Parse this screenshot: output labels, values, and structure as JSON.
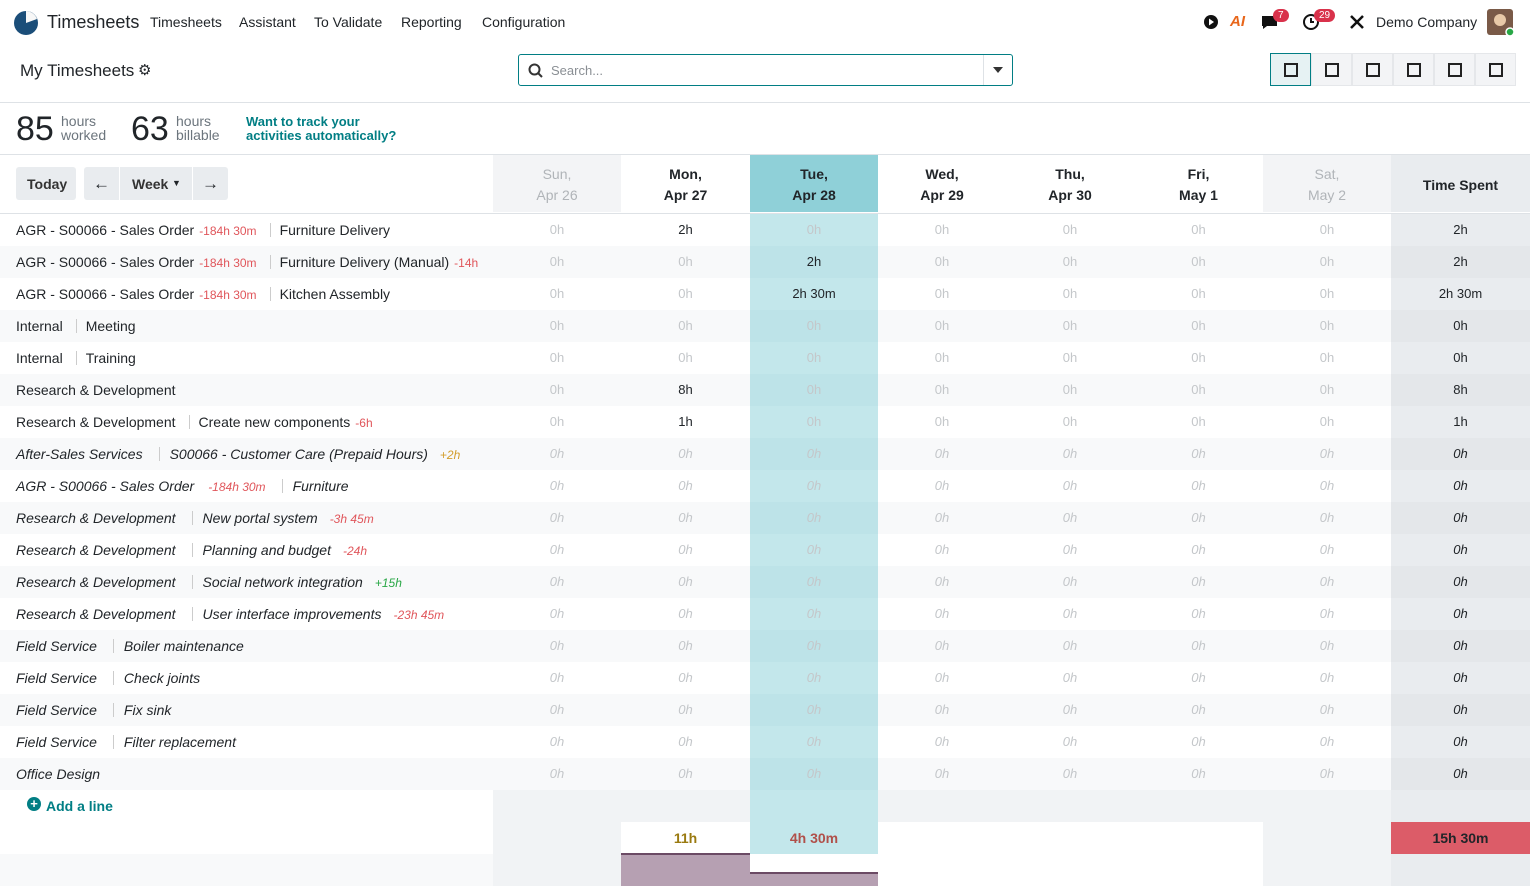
{
  "nav": {
    "app": "Timesheets",
    "menu": [
      "Timesheets",
      "Assistant",
      "To Validate",
      "Reporting",
      "Configuration"
    ],
    "ai": "AI",
    "badges": [
      "7",
      "29"
    ],
    "company": "Demo Company"
  },
  "control": {
    "title": "My Timesheets",
    "search_placeholder": "Search..."
  },
  "stats": [
    {
      "value": "85",
      "line1": "hours",
      "line2": "worked"
    },
    {
      "value": "63",
      "line1": "hours",
      "line2": "billable"
    }
  ],
  "promo": [
    "Want to track your",
    "activities automatically?"
  ],
  "toolbar": {
    "today": "Today",
    "range": "Week"
  },
  "days": [
    {
      "day": "Sun,",
      "date": "Apr 26"
    },
    {
      "day": "Mon,",
      "date": "Apr 27"
    },
    {
      "day": "Tue,",
      "date": "Apr 28"
    },
    {
      "day": "Wed,",
      "date": "Apr 29"
    },
    {
      "day": "Thu,",
      "date": "Apr 30"
    },
    {
      "day": "Fri,",
      "date": "May 1"
    },
    {
      "day": "Sat,",
      "date": "May 2"
    }
  ],
  "total_header": "Time Spent",
  "rows": [
    {
      "project": "AGR - S00066 - Sales Order",
      "project_delta": "-184h 30m",
      "task": "Furniture Delivery",
      "cells": [
        "0h",
        "2h",
        "0h",
        "0h",
        "0h",
        "0h",
        "0h"
      ],
      "total": "2h"
    },
    {
      "project": "AGR - S00066 - Sales Order",
      "project_delta": "-184h 30m",
      "task": "Furniture Delivery (Manual)",
      "task_delta": "-14h",
      "cells": [
        "0h",
        "0h",
        "2h",
        "0h",
        "0h",
        "0h",
        "0h"
      ],
      "total": "2h"
    },
    {
      "project": "AGR - S00066 - Sales Order",
      "project_delta": "-184h 30m",
      "task": "Kitchen Assembly",
      "cells": [
        "0h",
        "0h",
        "2h 30m",
        "0h",
        "0h",
        "0h",
        "0h"
      ],
      "total": "2h 30m"
    },
    {
      "project": "Internal",
      "task": "Meeting",
      "cells": [
        "0h",
        "0h",
        "0h",
        "0h",
        "0h",
        "0h",
        "0h"
      ],
      "total": "0h"
    },
    {
      "project": "Internal",
      "task": "Training",
      "cells": [
        "0h",
        "0h",
        "0h",
        "0h",
        "0h",
        "0h",
        "0h"
      ],
      "total": "0h"
    },
    {
      "project": "Research & Development",
      "cells": [
        "0h",
        "8h",
        "0h",
        "0h",
        "0h",
        "0h",
        "0h"
      ],
      "total": "8h"
    },
    {
      "project": "Research & Development",
      "task": "Create new components",
      "task_delta": "-6h",
      "cells": [
        "0h",
        "1h",
        "0h",
        "0h",
        "0h",
        "0h",
        "0h"
      ],
      "total": "1h"
    },
    {
      "project": "After-Sales Services",
      "task": "S00066 - Customer Care (Prepaid Hours)",
      "task_delta": "+2h",
      "italic": true,
      "cells": [
        "0h",
        "0h",
        "0h",
        "0h",
        "0h",
        "0h",
        "0h"
      ],
      "total": "0h"
    },
    {
      "project": "AGR - S00066 - Sales Order",
      "project_delta": "-184h 30m",
      "task": "Furniture",
      "italic": true,
      "cells": [
        "0h",
        "0h",
        "0h",
        "0h",
        "0h",
        "0h",
        "0h"
      ],
      "total": "0h"
    },
    {
      "project": "Research & Development",
      "task": "New portal system",
      "task_delta": "-3h 45m",
      "italic": true,
      "cells": [
        "0h",
        "0h",
        "0h",
        "0h",
        "0h",
        "0h",
        "0h"
      ],
      "total": "0h"
    },
    {
      "project": "Research & Development",
      "task": "Planning and budget",
      "task_delta": "-24h",
      "italic": true,
      "cells": [
        "0h",
        "0h",
        "0h",
        "0h",
        "0h",
        "0h",
        "0h"
      ],
      "total": "0h"
    },
    {
      "project": "Research & Development",
      "task": "Social network integration",
      "task_delta": "+15h",
      "italic": true,
      "cells": [
        "0h",
        "0h",
        "0h",
        "0h",
        "0h",
        "0h",
        "0h"
      ],
      "total": "0h"
    },
    {
      "project": "Research & Development",
      "task": "User interface improvements",
      "task_delta": "-23h 45m",
      "italic": true,
      "cells": [
        "0h",
        "0h",
        "0h",
        "0h",
        "0h",
        "0h",
        "0h"
      ],
      "total": "0h"
    },
    {
      "project": "Field Service",
      "task": "Boiler maintenance",
      "italic": true,
      "cells": [
        "0h",
        "0h",
        "0h",
        "0h",
        "0h",
        "0h",
        "0h"
      ],
      "total": "0h"
    },
    {
      "project": "Field Service",
      "task": "Check joints",
      "italic": true,
      "cells": [
        "0h",
        "0h",
        "0h",
        "0h",
        "0h",
        "0h",
        "0h"
      ],
      "total": "0h"
    },
    {
      "project": "Field Service",
      "task": "Fix sink",
      "italic": true,
      "cells": [
        "0h",
        "0h",
        "0h",
        "0h",
        "0h",
        "0h",
        "0h"
      ],
      "total": "0h"
    },
    {
      "project": "Field Service",
      "task": "Filter replacement",
      "italic": true,
      "cells": [
        "0h",
        "0h",
        "0h",
        "0h",
        "0h",
        "0h",
        "0h"
      ],
      "total": "0h"
    },
    {
      "project": "Office Design",
      "italic": true,
      "cells": [
        "0h",
        "0h",
        "0h",
        "0h",
        "0h",
        "0h",
        "0h"
      ],
      "total": "0h"
    }
  ],
  "add_line": "Add a line",
  "totals": {
    "cells": [
      null,
      "11h",
      "4h 30m",
      null,
      null,
      null,
      null
    ],
    "grand": "15h 30m"
  }
}
